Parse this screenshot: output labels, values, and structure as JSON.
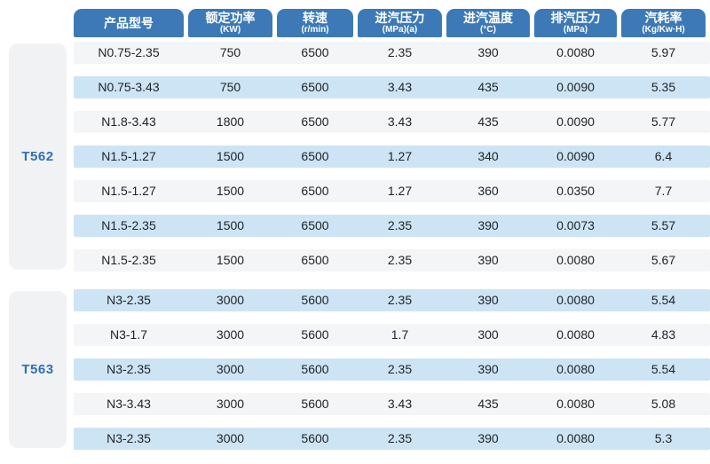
{
  "table": {
    "columns": [
      {
        "label": "产品型号",
        "unit": ""
      },
      {
        "label": "额定功率",
        "unit": "(KW)"
      },
      {
        "label": "转速",
        "unit": "(r/min)"
      },
      {
        "label": "进汽压力",
        "unit": "(MPa)(a)"
      },
      {
        "label": "进汽温度",
        "unit": "(°C)"
      },
      {
        "label": "排汽压力",
        "unit": "(MPa)"
      },
      {
        "label": "汽耗率",
        "unit": "(Kg/Kw·H)"
      }
    ],
    "groups": [
      {
        "name": "T562",
        "rows": [
          [
            "N0.75-2.35",
            "750",
            "6500",
            "2.35",
            "390",
            "0.0080",
            "5.97"
          ],
          [
            "N0.75-3.43",
            "750",
            "6500",
            "3.43",
            "435",
            "0.0090",
            "5.35"
          ],
          [
            "N1.8-3.43",
            "1800",
            "6500",
            "3.43",
            "435",
            "0.0090",
            "5.77"
          ],
          [
            "N1.5-1.27",
            "1500",
            "6500",
            "1.27",
            "340",
            "0.0090",
            "6.4"
          ],
          [
            "N1.5-1.27",
            "1500",
            "6500",
            "1.27",
            "360",
            "0.0350",
            "7.7"
          ],
          [
            "N1.5-2.35",
            "1500",
            "6500",
            "2.35",
            "390",
            "0.0073",
            "5.57"
          ],
          [
            "N1.5-2.35",
            "1500",
            "6500",
            "2.35",
            "390",
            "0.0080",
            "5.67"
          ]
        ]
      },
      {
        "name": "T563",
        "rows": [
          [
            "N3-2.35",
            "3000",
            "5600",
            "2.35",
            "390",
            "0.0080",
            "5.54"
          ],
          [
            "N3-1.7",
            "3000",
            "5600",
            "1.7",
            "300",
            "0.0080",
            "4.83"
          ],
          [
            "N3-2.35",
            "3000",
            "5600",
            "2.35",
            "390",
            "0.0080",
            "5.54"
          ],
          [
            "N3-3.43",
            "3000",
            "5600",
            "3.43",
            "435",
            "0.0080",
            "5.08"
          ],
          [
            "N3-2.35",
            "3000",
            "5600",
            "2.35",
            "390",
            "0.0080",
            "5.3"
          ]
        ]
      }
    ]
  },
  "colors": {
    "header_blue": "#3d79b6",
    "header_text": "#ffffff",
    "row_stripe_gray": "#f4f5f6",
    "row_stripe_blue": "#cde4f4",
    "group_panel_gray": "#f1f2f4",
    "group_label_blue": "#2e6fb8",
    "data_text": "#1e2226"
  }
}
